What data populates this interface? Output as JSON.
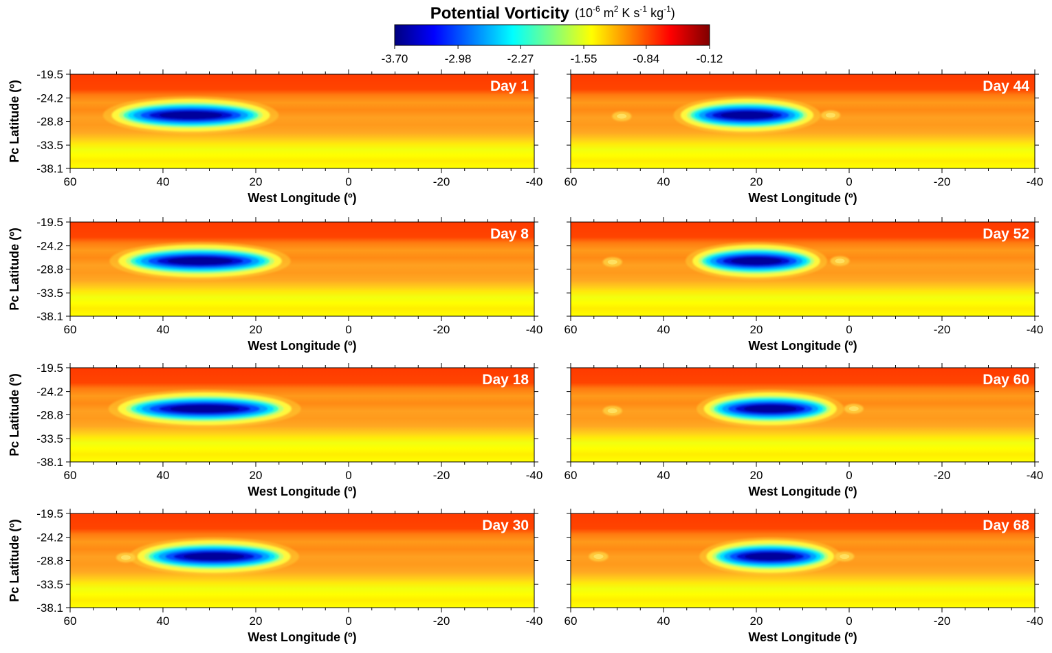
{
  "chart_data": {
    "type": "heatmap",
    "title": "Potential Vorticity",
    "units": {
      "prefix": "(10",
      "sup1": "-6",
      "mid1": " m",
      "sup2": "2",
      "mid2": " K s",
      "sup3": "-1",
      "mid3": " kg",
      "sup4": "-1",
      "suffix": ")"
    },
    "colorbar": {
      "ticks": [
        "-3.70",
        "-2.98",
        "-2.27",
        "-1.55",
        "-0.84",
        "-0.12"
      ],
      "range": [
        -3.7,
        -0.12
      ],
      "colors": [
        "#00007f",
        "#0000ff",
        "#007fff",
        "#00ffff",
        "#7fff7f",
        "#ffff00",
        "#ff7f00",
        "#ff0000",
        "#7f0000"
      ]
    },
    "xlabel": "West Longitude (º)",
    "ylabel": "Pc Latitude (º)",
    "xlim": [
      60,
      -40
    ],
    "ylim": [
      -38.1,
      -19.5
    ],
    "xticks": [
      "60",
      "40",
      "20",
      "0",
      "-20",
      "-40"
    ],
    "yticks": [
      "-19.5",
      "-24.2",
      "-28.8",
      "-33.5",
      "-38.1"
    ],
    "panels": [
      {
        "label": "Day 1",
        "vortex": {
          "lon": 34,
          "lat": -27.6,
          "width_lon": 31,
          "core_pv": -3.7
        },
        "companions": []
      },
      {
        "label": "Day 8",
        "vortex": {
          "lon": 32,
          "lat": -27.2,
          "width_lon": 32,
          "core_pv": -3.65
        },
        "companions": []
      },
      {
        "label": "Day 18",
        "vortex": {
          "lon": 31,
          "lat": -27.6,
          "width_lon": 34,
          "core_pv": -3.6
        },
        "companions": []
      },
      {
        "label": "Day 30",
        "vortex": {
          "lon": 29,
          "lat": -28.0,
          "width_lon": 30,
          "core_pv": -3.6
        },
        "companions": [
          {
            "lon": 48,
            "lat": -28.2
          }
        ]
      },
      {
        "label": "Day 44",
        "vortex": {
          "lon": 22,
          "lat": -27.6,
          "width_lon": 26,
          "core_pv": -3.65
        },
        "companions": [
          {
            "lon": 49,
            "lat": -27.8
          },
          {
            "lon": 4,
            "lat": -27.6
          }
        ]
      },
      {
        "label": "Day 52",
        "vortex": {
          "lon": 20,
          "lat": -27.2,
          "width_lon": 25,
          "core_pv": -3.7
        },
        "companions": [
          {
            "lon": 51,
            "lat": -27.4
          },
          {
            "lon": 2,
            "lat": -27.2
          }
        ]
      },
      {
        "label": "Day 60",
        "vortex": {
          "lon": 17,
          "lat": -27.6,
          "width_lon": 26,
          "core_pv": -3.7
        },
        "companions": [
          {
            "lon": 51,
            "lat": -28.0
          },
          {
            "lon": -1,
            "lat": -27.6
          }
        ]
      },
      {
        "label": "Day 68",
        "vortex": {
          "lon": 17,
          "lat": -28.0,
          "width_lon": 25,
          "core_pv": -3.65
        },
        "companions": [
          {
            "lon": 54,
            "lat": -28.0
          },
          {
            "lon": 1,
            "lat": -28.0
          }
        ]
      }
    ]
  }
}
